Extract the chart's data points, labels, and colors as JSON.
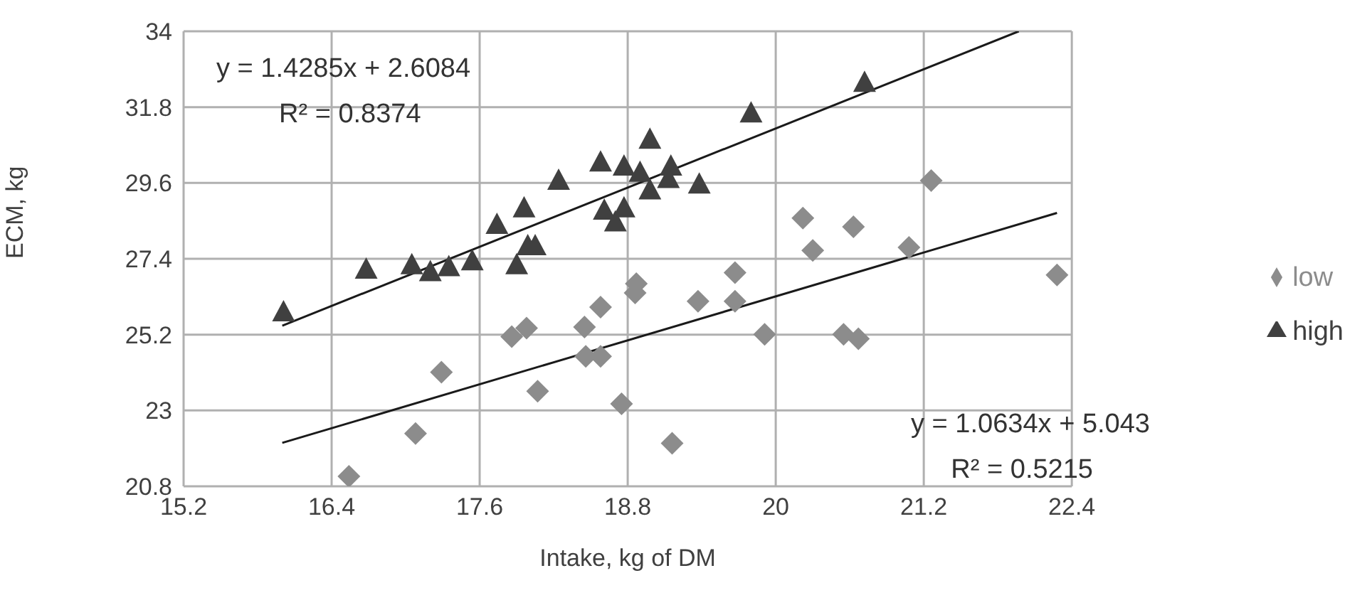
{
  "chart_data": {
    "type": "scatter",
    "xlabel": "Intake, kg of DM",
    "ylabel": "ECM, kg",
    "xlim": [
      15.2,
      22.4
    ],
    "xticks": [
      15.2,
      16.4,
      17.6,
      18.8,
      20,
      21.2,
      22.4
    ],
    "ylim": [
      20.8,
      34
    ],
    "yticks": [
      20.8,
      23,
      25.2,
      27.4,
      29.6,
      31.8,
      34
    ],
    "grid": true,
    "legend": "right",
    "annotations": [
      "y = 1.4285x + 2.6084",
      "R² = 0.8374",
      "y = 1.0634x + 5.043",
      "R² = 0.5215"
    ],
    "series": [
      {
        "name": "low",
        "color": "#8c8c8c",
        "marker": "diamond",
        "x": [
          16.54,
          17.08,
          17.29,
          17.86,
          17.98,
          18.07,
          18.45,
          18.58,
          18.46,
          18.58,
          18.75,
          18.87,
          18.86,
          19.16,
          19.37,
          19.67,
          19.67,
          19.91,
          20.22,
          20.3,
          20.55,
          20.67,
          20.63,
          21.08,
          21.26,
          22.28
        ],
        "values": [
          21.09,
          22.33,
          24.11,
          25.14,
          25.39,
          23.56,
          25.42,
          26.0,
          24.57,
          24.57,
          23.19,
          26.68,
          26.41,
          22.05,
          26.17,
          27.0,
          26.17,
          25.21,
          28.58,
          27.64,
          25.21,
          25.08,
          28.33,
          27.73,
          29.67,
          26.93
        ]
      },
      {
        "name": "high",
        "color": "#404040",
        "marker": "triangle",
        "x": [
          16.01,
          16.68,
          17.05,
          17.2,
          17.35,
          17.54,
          17.74,
          17.96,
          17.9,
          17.99,
          18.05,
          18.24,
          18.58,
          18.77,
          18.9,
          18.98,
          19.15,
          19.13,
          18.98,
          18.61,
          18.7,
          18.77,
          19.38,
          19.8,
          20.72
        ],
        "values": [
          25.83,
          27.07,
          27.2,
          27.0,
          27.14,
          27.31,
          28.37,
          28.85,
          27.2,
          27.75,
          27.75,
          29.65,
          30.18,
          30.06,
          29.88,
          30.84,
          30.06,
          29.7,
          29.37,
          28.78,
          28.44,
          28.85,
          29.54,
          31.6,
          32.49
        ]
      },
      {
        "type": "line",
        "color": "#1a1a1a",
        "marker": "none",
        "x": [
          16.0,
          21.97
        ],
        "values": [
          25.46,
          34.0
        ]
      },
      {
        "type": "line",
        "color": "#1a1a1a",
        "marker": "none",
        "x": [
          16.0,
          22.28
        ],
        "values": [
          22.06,
          28.73
        ]
      }
    ]
  }
}
